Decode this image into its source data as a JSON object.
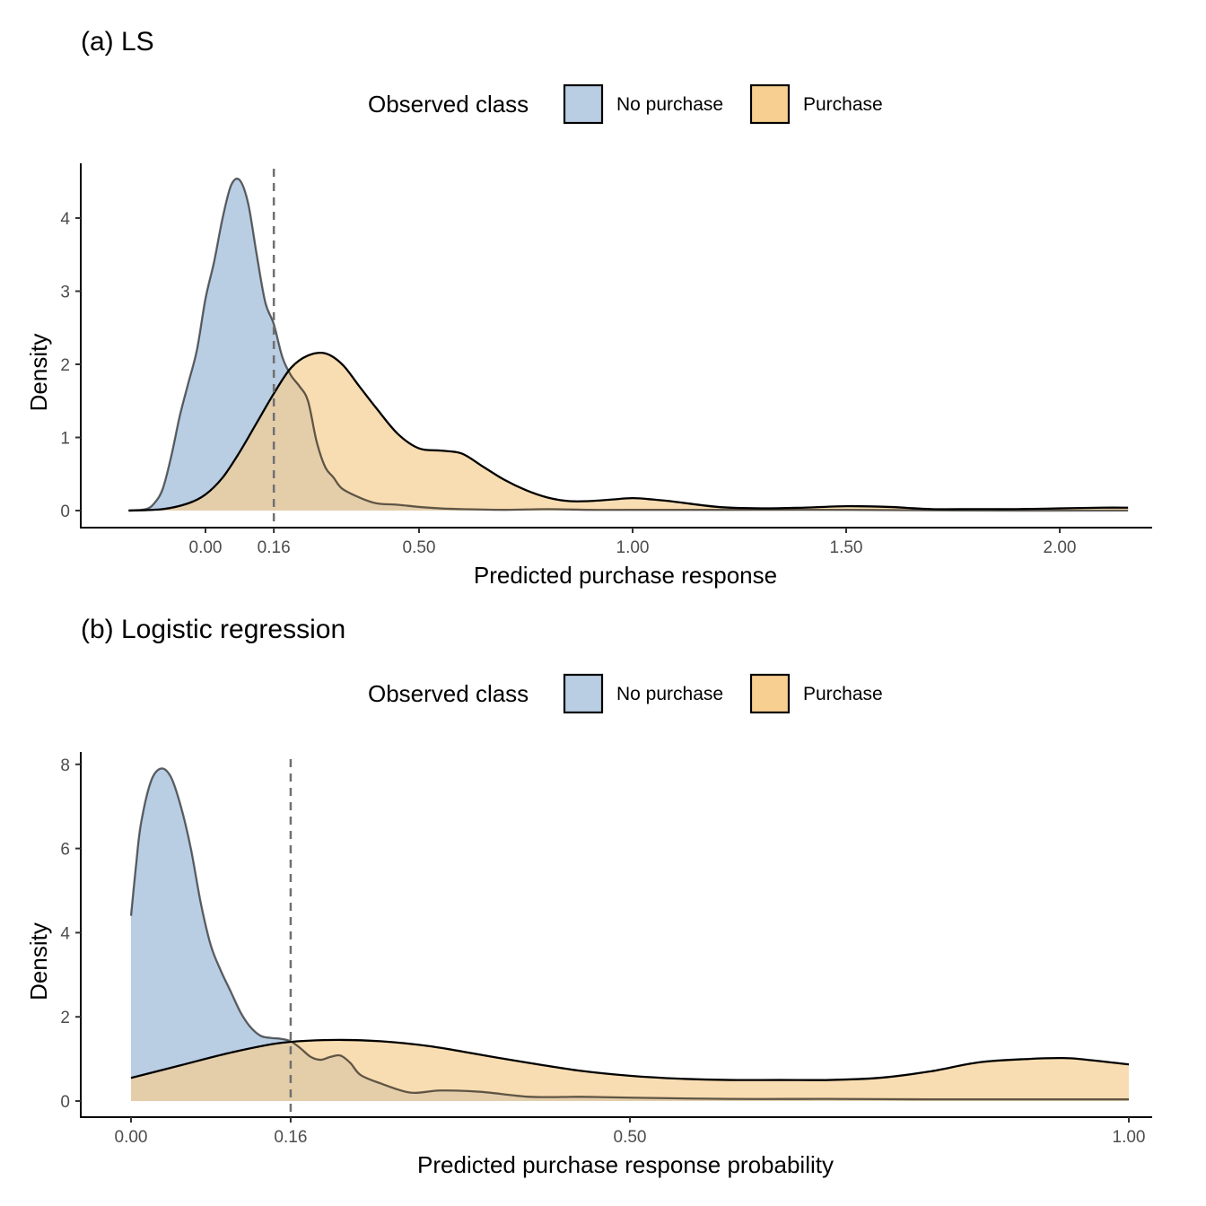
{
  "chart_data": [
    {
      "type": "area",
      "title": "(a) LS",
      "xlabel": "Predicted purchase response",
      "ylabel": "Density",
      "xlim": [
        -0.18,
        2.16
      ],
      "ylim": [
        0,
        4.7
      ],
      "x_ticks": [
        0.0,
        0.16,
        0.5,
        1.0,
        1.5,
        2.0
      ],
      "x_tick_labels": [
        "0.00",
        "0.16",
        "0.50",
        "1.00",
        "1.50",
        "2.00"
      ],
      "y_ticks": [
        0,
        1,
        2,
        3,
        4
      ],
      "y_tick_labels": [
        "0",
        "1",
        "2",
        "3",
        "4"
      ],
      "threshold": 0.16,
      "legend": {
        "title": "Observed class",
        "position": "top",
        "entries": [
          "No purchase",
          "Purchase"
        ]
      },
      "grid": false,
      "series": [
        {
          "name": "No purchase",
          "color": "#b9cde3",
          "x": [
            -0.18,
            -0.14,
            -0.12,
            -0.1,
            -0.08,
            -0.06,
            -0.04,
            -0.02,
            0.0,
            0.02,
            0.04,
            0.06,
            0.08,
            0.1,
            0.12,
            0.14,
            0.16,
            0.18,
            0.2,
            0.22,
            0.24,
            0.26,
            0.28,
            0.3,
            0.32,
            0.36,
            0.4,
            0.45,
            0.5,
            0.55,
            0.6,
            0.7,
            0.8,
            0.9,
            1.0,
            1.2,
            1.5,
            1.8,
            2.16
          ],
          "y": [
            0.0,
            0.02,
            0.1,
            0.3,
            0.75,
            1.3,
            1.75,
            2.2,
            2.9,
            3.4,
            4.0,
            4.45,
            4.52,
            4.2,
            3.5,
            2.85,
            2.55,
            2.1,
            1.85,
            1.7,
            1.5,
            0.95,
            0.6,
            0.45,
            0.3,
            0.18,
            0.1,
            0.08,
            0.05,
            0.03,
            0.02,
            0.01,
            0.02,
            0.01,
            0.01,
            0.01,
            0.01,
            0.0,
            0.0
          ]
        },
        {
          "name": "Purchase",
          "color": "#f7cf91",
          "x": [
            -0.18,
            -0.1,
            -0.04,
            0.0,
            0.04,
            0.08,
            0.12,
            0.16,
            0.2,
            0.24,
            0.28,
            0.32,
            0.36,
            0.4,
            0.45,
            0.5,
            0.55,
            0.6,
            0.65,
            0.7,
            0.75,
            0.8,
            0.85,
            0.9,
            0.95,
            1.0,
            1.05,
            1.1,
            1.2,
            1.3,
            1.4,
            1.5,
            1.6,
            1.7,
            1.8,
            1.9,
            2.0,
            2.1,
            2.16
          ],
          "y": [
            0.0,
            0.02,
            0.1,
            0.22,
            0.45,
            0.8,
            1.2,
            1.6,
            1.95,
            2.12,
            2.15,
            2.0,
            1.7,
            1.4,
            1.05,
            0.85,
            0.82,
            0.78,
            0.6,
            0.42,
            0.28,
            0.18,
            0.13,
            0.13,
            0.15,
            0.17,
            0.15,
            0.12,
            0.05,
            0.03,
            0.04,
            0.06,
            0.05,
            0.02,
            0.02,
            0.02,
            0.03,
            0.04,
            0.04
          ]
        }
      ]
    },
    {
      "type": "area",
      "title": "(b) Logistic regression",
      "xlabel": "Predicted purchase response probability",
      "ylabel": "Density",
      "xlim": [
        0.0,
        1.0
      ],
      "ylim": [
        0,
        8.2
      ],
      "x_ticks": [
        0.0,
        0.16,
        0.5,
        1.0
      ],
      "x_tick_labels": [
        "0.00",
        "0.16",
        "0.50",
        "1.00"
      ],
      "y_ticks": [
        0,
        2,
        4,
        6,
        8
      ],
      "y_tick_labels": [
        "0",
        "2",
        "4",
        "6",
        "8"
      ],
      "threshold": 0.16,
      "legend": {
        "title": "Observed class",
        "position": "top",
        "entries": [
          "No purchase",
          "Purchase"
        ]
      },
      "grid": false,
      "series": [
        {
          "name": "No purchase",
          "color": "#b9cde3",
          "x": [
            0.0,
            0.005,
            0.01,
            0.02,
            0.03,
            0.04,
            0.05,
            0.06,
            0.07,
            0.08,
            0.09,
            0.1,
            0.11,
            0.12,
            0.13,
            0.14,
            0.15,
            0.16,
            0.17,
            0.18,
            0.19,
            0.2,
            0.21,
            0.22,
            0.23,
            0.25,
            0.28,
            0.31,
            0.35,
            0.4,
            0.45,
            0.5,
            0.6,
            0.7,
            0.8,
            0.9,
            1.0
          ],
          "y": [
            4.4,
            5.6,
            6.6,
            7.6,
            7.9,
            7.7,
            7.0,
            6.0,
            4.7,
            3.7,
            3.1,
            2.6,
            2.1,
            1.75,
            1.55,
            1.5,
            1.48,
            1.42,
            1.25,
            1.05,
            0.98,
            1.05,
            1.08,
            0.9,
            0.62,
            0.42,
            0.2,
            0.25,
            0.22,
            0.1,
            0.1,
            0.08,
            0.05,
            0.05,
            0.04,
            0.04,
            0.04
          ]
        },
        {
          "name": "Purchase",
          "color": "#f7cf91",
          "x": [
            0.0,
            0.05,
            0.1,
            0.15,
            0.2,
            0.25,
            0.3,
            0.35,
            0.4,
            0.45,
            0.5,
            0.55,
            0.6,
            0.65,
            0.7,
            0.75,
            0.8,
            0.85,
            0.9,
            0.93,
            0.95,
            1.0
          ],
          "y": [
            0.55,
            0.85,
            1.15,
            1.38,
            1.45,
            1.42,
            1.3,
            1.1,
            0.9,
            0.72,
            0.6,
            0.53,
            0.5,
            0.5,
            0.5,
            0.55,
            0.7,
            0.92,
            1.0,
            1.02,
            1.0,
            0.87
          ]
        }
      ]
    }
  ]
}
